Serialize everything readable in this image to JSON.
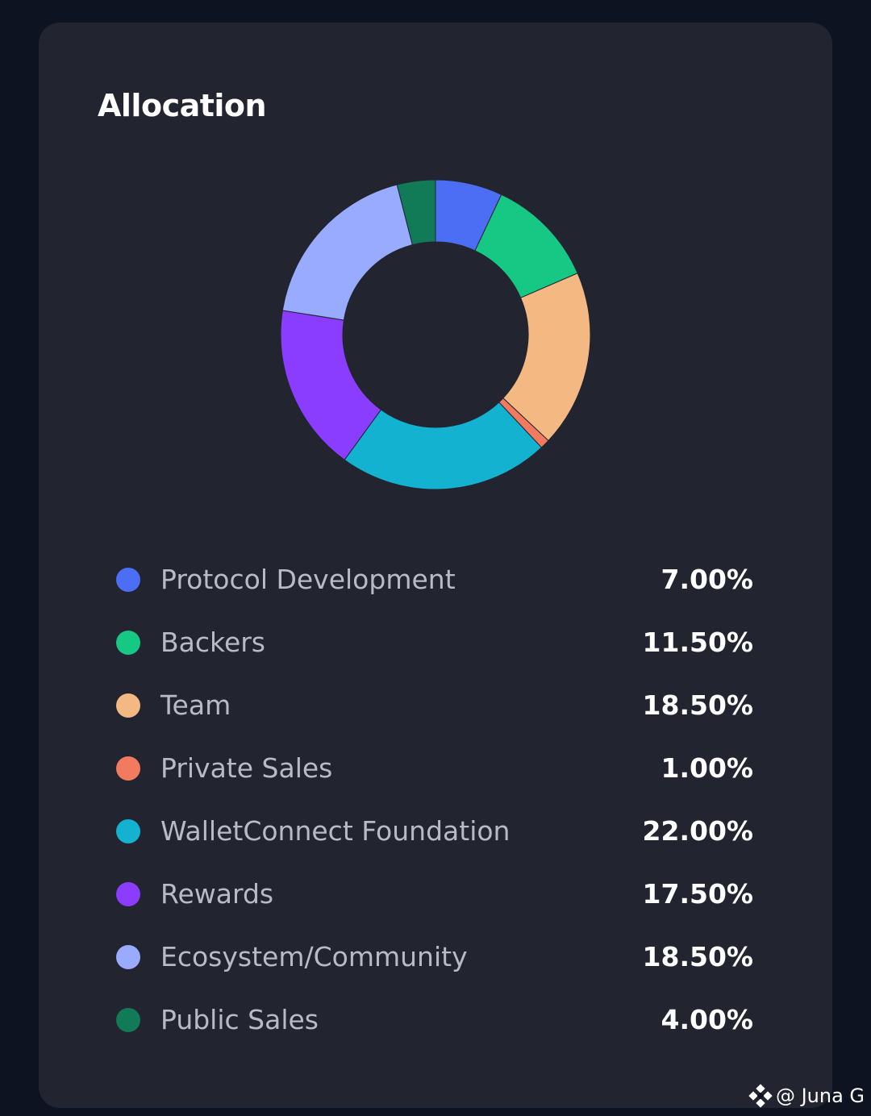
{
  "card": {
    "title": "Allocation"
  },
  "chart_data": {
    "type": "pie",
    "title": "Allocation",
    "donut": true,
    "legend_position": "bottom",
    "series": [
      {
        "name": "Protocol Development",
        "value": 7.0,
        "value_label": "7.00%",
        "color": "#4c6ef5"
      },
      {
        "name": "Backers",
        "value": 11.5,
        "value_label": "11.50%",
        "color": "#17c784"
      },
      {
        "name": "Team",
        "value": 18.5,
        "value_label": "18.50%",
        "color": "#f4b983"
      },
      {
        "name": "Private Sales",
        "value": 1.0,
        "value_label": "1.00%",
        "color": "#f27a5e"
      },
      {
        "name": "WalletConnect Foundation",
        "value": 22.0,
        "value_label": "22.00%",
        "color": "#13b2d1"
      },
      {
        "name": "Rewards",
        "value": 17.5,
        "value_label": "17.50%",
        "color": "#8b3dff"
      },
      {
        "name": "Ecosystem/Community",
        "value": 18.5,
        "value_label": "18.50%",
        "color": "#98abff"
      },
      {
        "name": "Public Sales",
        "value": 4.0,
        "value_label": "4.00%",
        "color": "#117a57"
      }
    ]
  },
  "watermark": {
    "text": "@ Juna G",
    "icon": "binance-square-icon"
  }
}
